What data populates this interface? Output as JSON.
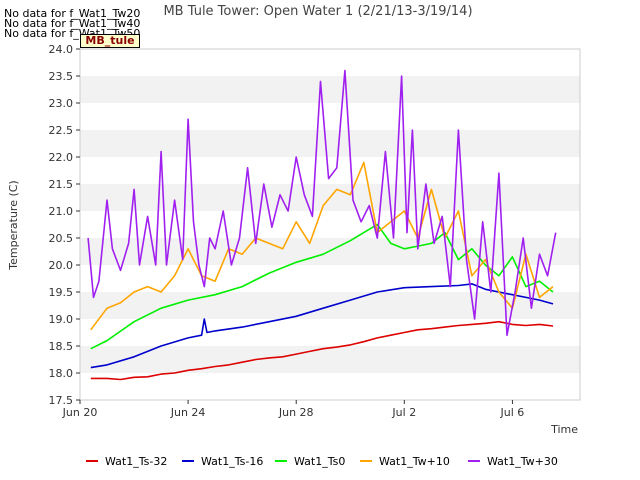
{
  "notes": [
    "No data for f_Wat1_Tw20",
    "No data for f_Wat1_Tw40",
    "No data for f_Wat1_Tw50"
  ],
  "badge": "MB_tule",
  "chart_data": {
    "type": "line",
    "title": "MB Tule Tower: Open Water 1 (2/21/13-3/19/14)",
    "xlabel": "Time",
    "ylabel": "Temperature (C)",
    "ylim": [
      17.5,
      24.0
    ],
    "yticks": [
      17.5,
      18.0,
      18.5,
      19.0,
      19.5,
      20.0,
      20.5,
      21.0,
      21.5,
      22.0,
      22.5,
      23.0,
      23.5,
      24.0
    ],
    "xlim": [
      0,
      18.5
    ],
    "xticks": [
      {
        "x": 0,
        "label": "Jun 20"
      },
      {
        "x": 4,
        "label": "Jun 24"
      },
      {
        "x": 8,
        "label": "Jun 28"
      },
      {
        "x": 12,
        "label": "Jul 2"
      },
      {
        "x": 16,
        "label": "Jul 6"
      }
    ],
    "grid": "alternating horizontal bands",
    "legend_position": "bottom",
    "series": [
      {
        "name": "Wat1_Ts-32",
        "color": "#dd0000",
        "x": [
          0.4,
          1,
          1.5,
          2,
          2.5,
          3,
          3.5,
          4,
          4.5,
          5,
          5.5,
          6,
          6.5,
          7,
          7.5,
          8,
          8.5,
          9,
          9.5,
          10,
          10.5,
          11,
          11.5,
          12,
          12.5,
          13,
          13.5,
          14,
          14.5,
          15,
          15.5,
          16,
          16.5,
          17,
          17.5
        ],
        "y": [
          17.9,
          17.9,
          17.88,
          17.92,
          17.93,
          17.98,
          18.0,
          18.05,
          18.08,
          18.12,
          18.15,
          18.2,
          18.25,
          18.28,
          18.3,
          18.35,
          18.4,
          18.45,
          18.48,
          18.52,
          18.58,
          18.65,
          18.7,
          18.75,
          18.8,
          18.82,
          18.85,
          18.88,
          18.9,
          18.92,
          18.95,
          18.9,
          18.88,
          18.9,
          18.87
        ]
      },
      {
        "name": "Wat1_Ts-16",
        "color": "#0000cc",
        "x": [
          0.4,
          1,
          2,
          3,
          4,
          4.5,
          4.6,
          4.7,
          5,
          6,
          7,
          8,
          9,
          10,
          11,
          12,
          13,
          14,
          14.5,
          15,
          16,
          16.5,
          17,
          17.5
        ],
        "y": [
          18.1,
          18.15,
          18.3,
          18.5,
          18.65,
          18.7,
          19.0,
          18.75,
          18.78,
          18.85,
          18.95,
          19.05,
          19.2,
          19.35,
          19.5,
          19.58,
          19.6,
          19.62,
          19.65,
          19.55,
          19.45,
          19.4,
          19.35,
          19.28
        ]
      },
      {
        "name": "Wat1_Ts0",
        "color": "#00ee00",
        "x": [
          0.4,
          1,
          2,
          3,
          4,
          5,
          6,
          7,
          8,
          9,
          10,
          10.5,
          11,
          11.5,
          12,
          12.5,
          13,
          13.5,
          14,
          14.5,
          15,
          15.5,
          16,
          16.5,
          17,
          17.5
        ],
        "y": [
          18.45,
          18.6,
          18.95,
          19.2,
          19.35,
          19.45,
          19.6,
          19.85,
          20.05,
          20.2,
          20.45,
          20.6,
          20.75,
          20.4,
          20.3,
          20.35,
          20.4,
          20.6,
          20.1,
          20.3,
          20.0,
          19.8,
          20.15,
          19.6,
          19.7,
          19.5
        ]
      },
      {
        "name": "Wat1_Tw+10",
        "color": "#ffa500",
        "x": [
          0.4,
          1,
          1.5,
          2,
          2.5,
          3,
          3.5,
          4,
          4.5,
          5,
          5.5,
          6,
          6.5,
          7,
          7.5,
          8,
          8.5,
          9,
          9.5,
          10,
          10.5,
          11,
          11.5,
          12,
          12.5,
          13,
          13.5,
          14,
          14.5,
          15,
          15.5,
          16,
          16.5,
          17,
          17.5
        ],
        "y": [
          18.8,
          19.2,
          19.3,
          19.5,
          19.6,
          19.5,
          19.8,
          20.3,
          19.8,
          19.7,
          20.3,
          20.2,
          20.5,
          20.4,
          20.3,
          20.8,
          20.4,
          21.1,
          21.4,
          21.3,
          21.9,
          20.6,
          20.8,
          21.0,
          20.5,
          21.4,
          20.5,
          21.0,
          19.8,
          20.1,
          19.5,
          19.2,
          20.2,
          19.4,
          19.6
        ]
      },
      {
        "name": "Wat1_Tw+30",
        "color": "#a020f0",
        "x": [
          0.3,
          0.5,
          0.7,
          1,
          1.2,
          1.5,
          1.8,
          2,
          2.2,
          2.5,
          2.8,
          3,
          3.2,
          3.5,
          3.8,
          4,
          4.2,
          4.4,
          4.6,
          4.8,
          5,
          5.3,
          5.6,
          5.9,
          6.2,
          6.5,
          6.8,
          7.1,
          7.4,
          7.7,
          8,
          8.3,
          8.6,
          8.9,
          9.2,
          9.5,
          9.8,
          10.1,
          10.4,
          10.7,
          11,
          11.3,
          11.6,
          11.9,
          12.1,
          12.3,
          12.5,
          12.8,
          13.1,
          13.4,
          13.7,
          14,
          14.3,
          14.6,
          14.9,
          15.2,
          15.5,
          15.8,
          16.1,
          16.4,
          16.7,
          17,
          17.3,
          17.6
        ],
        "y": [
          20.5,
          19.4,
          19.7,
          21.2,
          20.3,
          19.9,
          20.4,
          21.4,
          20.0,
          20.9,
          20.0,
          22.1,
          20.0,
          21.2,
          20.1,
          22.7,
          20.8,
          20.0,
          19.6,
          20.5,
          20.3,
          21.0,
          20.0,
          20.5,
          21.8,
          20.4,
          21.5,
          20.7,
          21.3,
          21.0,
          22.0,
          21.3,
          20.9,
          23.4,
          21.6,
          21.8,
          23.6,
          21.2,
          20.8,
          21.1,
          20.5,
          22.1,
          20.5,
          23.5,
          20.6,
          22.5,
          20.3,
          21.5,
          20.4,
          20.9,
          19.6,
          22.5,
          20.1,
          19.0,
          20.8,
          19.5,
          21.7,
          18.7,
          19.5,
          20.5,
          19.2,
          20.2,
          19.8,
          20.6
        ]
      }
    ]
  }
}
